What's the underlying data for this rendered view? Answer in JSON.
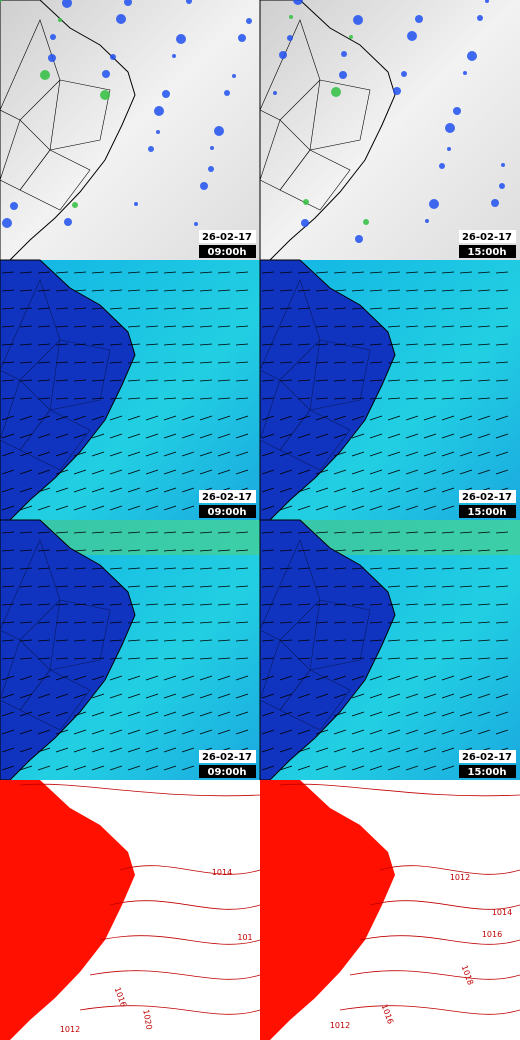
{
  "panels": [
    {
      "date": "26-02-17",
      "time": "09:00h"
    },
    {
      "date": "26-02-17",
      "time": "15:00h"
    },
    {
      "date": "26-02-17",
      "time": "09:00h"
    },
    {
      "date": "26-02-17",
      "time": "15:00h"
    },
    {
      "date": "26-02-17",
      "time": "09:00h"
    },
    {
      "date": "26-02-17",
      "time": "15:00h"
    }
  ],
  "contour_labels": {
    "left": [
      1014,
      101,
      1016,
      1020,
      1012
    ],
    "right": [
      1012,
      1014,
      1016,
      1018,
      1016,
      1012
    ]
  }
}
